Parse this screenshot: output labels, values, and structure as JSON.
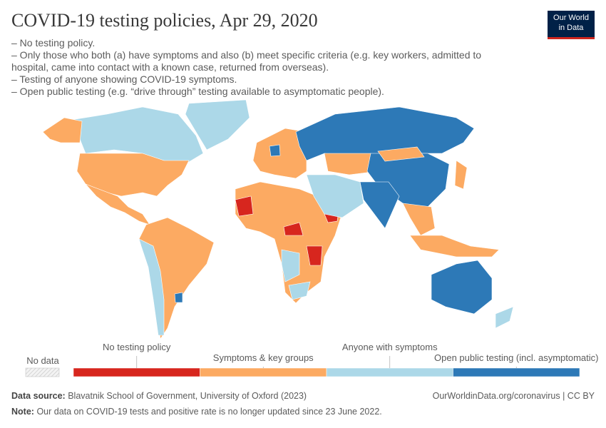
{
  "header": {
    "title": "COVID-19 testing policies, Apr 29, 2020",
    "logo": "Our World in Data",
    "subtitle": [
      "– No testing policy.",
      "– Only those who both (a) have symptoms and also (b) meet specific criteria (e.g. key workers, admitted to hospital, came into contact with a known case, returned from overseas).",
      "– Testing of anyone showing COVID-19 symptoms.",
      "– Open public testing (e.g. “drive through” testing available to asymptomatic people)."
    ]
  },
  "legend": {
    "no_data": "No data",
    "categories": [
      {
        "label": "No testing policy",
        "color": "#d7261e"
      },
      {
        "label": "Symptoms & key groups",
        "color": "#fcaa62"
      },
      {
        "label": "Anyone with symptoms",
        "color": "#acd8e8"
      },
      {
        "label": "Open public testing (incl. asymptomatic)",
        "color": "#2d79b7"
      }
    ]
  },
  "footer": {
    "source_label": "Data source:",
    "source": "Blavatnik School of Government, University of Oxford (2023)",
    "link": "OurWorldinData.org/coronavirus | CC BY",
    "note_label": "Note:",
    "note": "Our data on COVID-19 tests and positive rate is no longer updated since 23 June 2022."
  }
}
